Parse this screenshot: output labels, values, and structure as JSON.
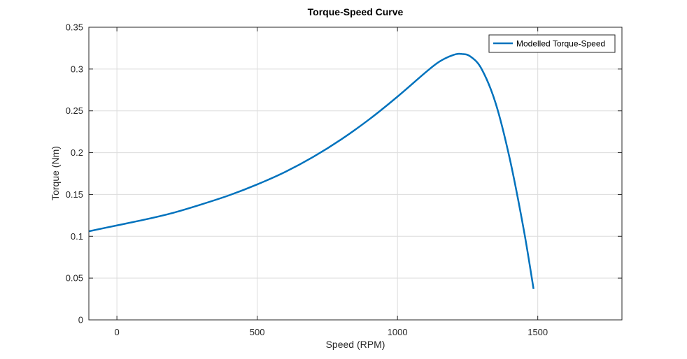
{
  "chart_data": {
    "type": "line",
    "title": "Torque-Speed Curve",
    "xlabel": "Speed (RPM)",
    "ylabel": "Torque (Nm)",
    "xlim": [
      -100,
      1800
    ],
    "ylim": [
      0,
      0.35
    ],
    "xticks": [
      0,
      500,
      1000,
      1500
    ],
    "xtick_labels": [
      "0",
      "500",
      "1000",
      "1500"
    ],
    "yticks": [
      0,
      0.05,
      0.1,
      0.15,
      0.2,
      0.25,
      0.3,
      0.35
    ],
    "ytick_labels": [
      "0",
      "0.05",
      "0.1",
      "0.15",
      "0.2",
      "0.25",
      "0.3",
      "0.35"
    ],
    "grid": true,
    "legend_position": "top-right",
    "colors": {
      "series": "#0072BD",
      "grid": "#dcdcdc",
      "axis": "#262626"
    },
    "series": [
      {
        "name": "Modelled Torque-Speed",
        "x": [
          -100,
          0,
          100,
          200,
          300,
          400,
          500,
          600,
          700,
          800,
          900,
          1000,
          1100,
          1150,
          1200,
          1230,
          1260,
          1300,
          1350,
          1400,
          1450,
          1485
        ],
        "y": [
          0.106,
          0.113,
          0.12,
          0.128,
          0.138,
          0.149,
          0.162,
          0.177,
          0.195,
          0.216,
          0.24,
          0.267,
          0.296,
          0.309,
          0.317,
          0.318,
          0.315,
          0.3,
          0.259,
          0.193,
          0.108,
          0.037
        ]
      }
    ]
  }
}
